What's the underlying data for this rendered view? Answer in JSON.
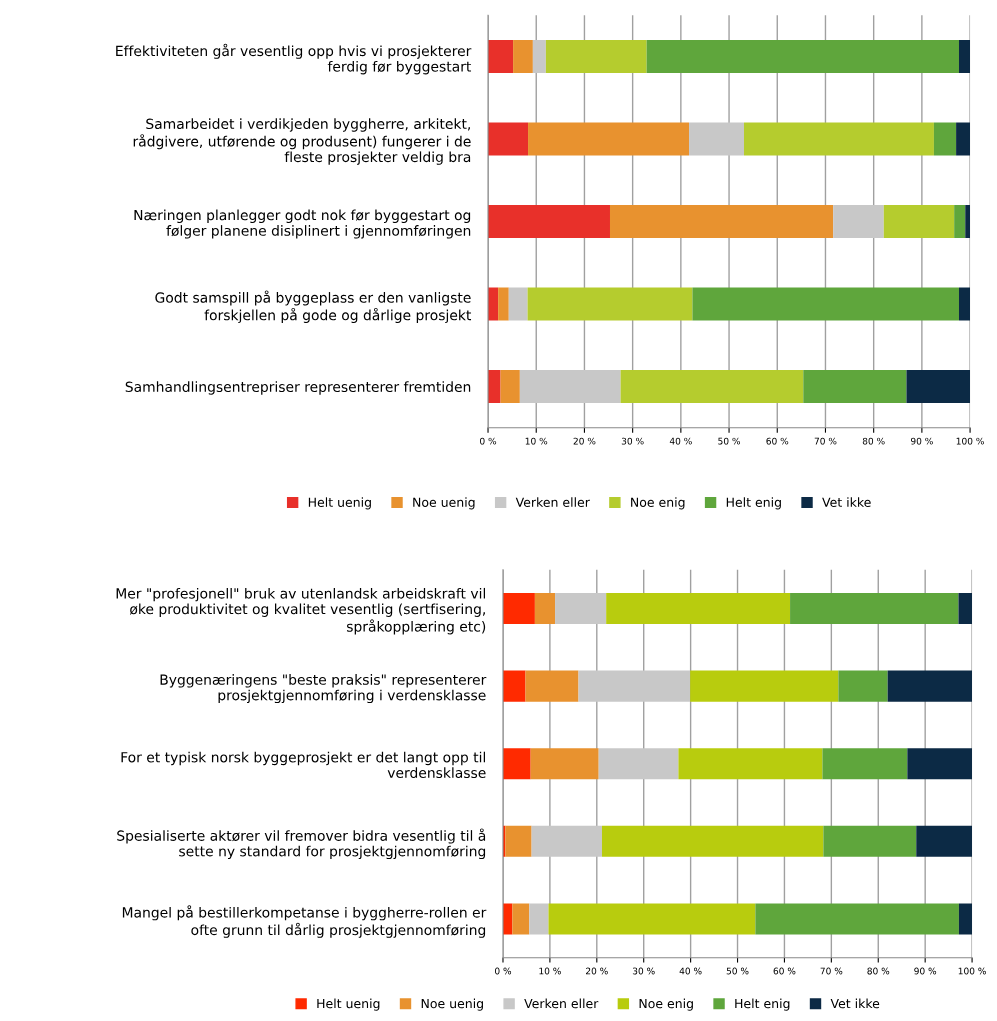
{
  "chart_data": [
    {
      "type": "bar",
      "orientation": "horizontal",
      "stacked": true,
      "grid": "x",
      "legend": "bottom",
      "categories": [
        "Effektiviteten går vesentlig opp hvis vi prosjekterer\nferdig før byggestart",
        "Samarbeidet i verdikjeden byggherre, arkitekt,\nrådgivere, utførende og produsent) fungerer i de\nfleste prosjekter veldig bra",
        "Næringen planlegger godt nok før byggestart og\nfølger planene disiplinert i gjennomføringen",
        "Godt samspill på byggeplass er den vanligste\nforskjellen på gode og dårlige prosjekt",
        "Samhandlingsentrepriser representerer fremtiden"
      ],
      "xlim": [
        0,
        100
      ],
      "xticks": [
        {
          "value": 0,
          "label": "0 %"
        },
        {
          "value": 10,
          "label": "10 %"
        },
        {
          "value": 20,
          "label": "20 %"
        },
        {
          "value": 30,
          "label": "30 %"
        },
        {
          "value": 40,
          "label": "40 %"
        },
        {
          "value": 50,
          "label": "50 %"
        },
        {
          "value": 60,
          "label": "60 %"
        },
        {
          "value": 70,
          "label": "70 %"
        },
        {
          "value": 80,
          "label": "80 %"
        },
        {
          "value": 90,
          "label": "90 %"
        },
        {
          "value": 100,
          "label": "100 %"
        }
      ],
      "series": [
        {
          "name": "Helt uenig",
          "color": "#e8302a",
          "values": [
            5.2,
            8.3,
            25.3,
            2.1,
            2.6
          ]
        },
        {
          "name": "Noe uenig",
          "color": "#e8922f",
          "values": [
            4.1,
            33.4,
            46.3,
            2.2,
            4.0
          ]
        },
        {
          "name": "Verken eller",
          "color": "#c8c8c8",
          "values": [
            2.7,
            11.4,
            10.5,
            3.9,
            20.9
          ]
        },
        {
          "name": "Noe enig",
          "color": "#b5cc2e",
          "values": [
            20.9,
            39.4,
            14.6,
            34.2,
            37.9
          ]
        },
        {
          "name": "Helt enig",
          "color": "#5fa63c",
          "values": [
            64.8,
            4.6,
            2.3,
            55.3,
            21.4
          ]
        },
        {
          "name": "Vet ikke",
          "color": "#0c2a45",
          "values": [
            2.3,
            2.9,
            1.0,
            2.3,
            13.2
          ]
        }
      ]
    },
    {
      "type": "bar",
      "orientation": "horizontal",
      "stacked": true,
      "grid": "x",
      "legend": "bottom",
      "categories": [
        "Mer \"profesjonell\" bruk av utenlandsk arbeidskraft vil\nøke produktivitet og kvalitet vesentlig (sertfisering,\nspråkopplæring etc)",
        "Byggenæringens \"beste praksis\" representerer\nprosjektgjennomføring i verdensklasse",
        "For et typisk norsk byggeprosjekt er det langt opp til\nverdensklasse",
        "Spesialiserte aktører vil fremover bidra vesentlig til å\nsette ny standard for prosjektgjennomføring",
        "Mangel på bestillerkompetanse i byggherre-rollen er\nofte grunn til dårlig prosjektgjennomføring"
      ],
      "xlim": [
        0,
        100
      ],
      "xticks": [
        {
          "value": 0,
          "label": "0 %"
        },
        {
          "value": 10,
          "label": "10 %"
        },
        {
          "value": 20,
          "label": "20 %"
        },
        {
          "value": 30,
          "label": "30 %"
        },
        {
          "value": 40,
          "label": "40 %"
        },
        {
          "value": 50,
          "label": "50 %"
        },
        {
          "value": 60,
          "label": "60 %"
        },
        {
          "value": 70,
          "label": "70 %"
        },
        {
          "value": 80,
          "label": "80 %"
        },
        {
          "value": 90,
          "label": "90 %"
        },
        {
          "value": 100,
          "label": "100 %"
        }
      ],
      "series": [
        {
          "name": "Helt uenig",
          "color": "#ff2a00",
          "values": [
            6.8,
            4.8,
            5.9,
            0.5,
            2.0
          ]
        },
        {
          "name": "Noe uenig",
          "color": "#e8922f",
          "values": [
            4.3,
            11.3,
            14.5,
            5.6,
            3.6
          ]
        },
        {
          "name": "Verken eller",
          "color": "#c8c8c8",
          "values": [
            10.9,
            23.8,
            17.0,
            15.0,
            4.1
          ]
        },
        {
          "name": "Noe enig",
          "color": "#b8cc0e",
          "values": [
            39.2,
            31.6,
            30.7,
            47.2,
            44.1
          ]
        },
        {
          "name": "Helt enig",
          "color": "#5fa63c",
          "values": [
            35.9,
            10.5,
            18.1,
            19.8,
            43.4
          ]
        },
        {
          "name": "Vet ikke",
          "color": "#0c2a45",
          "values": [
            2.9,
            18.0,
            13.8,
            11.9,
            2.8
          ]
        }
      ]
    }
  ]
}
